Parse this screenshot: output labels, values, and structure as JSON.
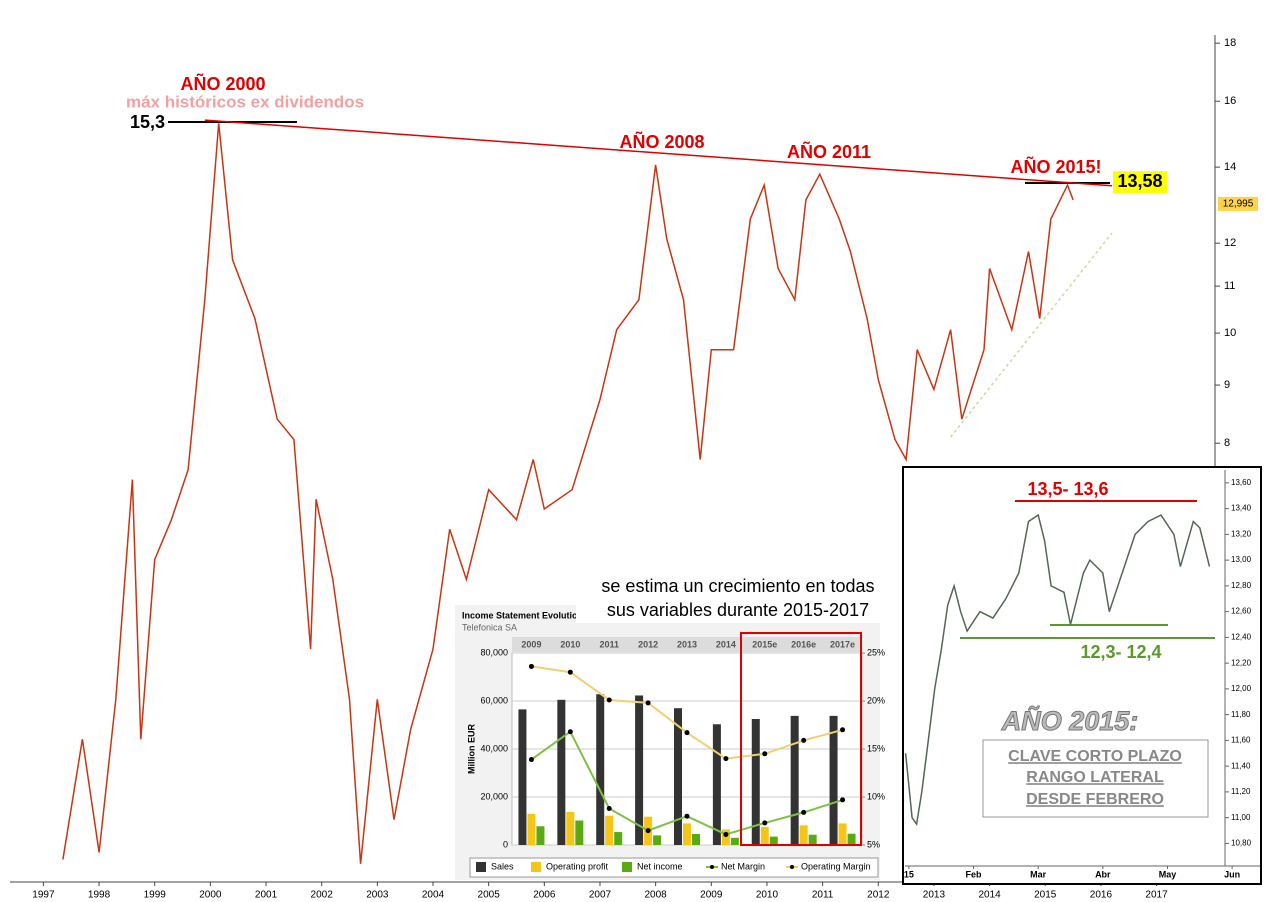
{
  "chart_data": [
    {
      "type": "line",
      "log": true,
      "xlim": [
        1996.4,
        2018.05
      ],
      "xticks": [
        1997,
        1998,
        1999,
        2000,
        2001,
        2002,
        2003,
        2004,
        2005,
        2006,
        2007,
        2008,
        2009,
        2010,
        2011,
        2012,
        2013,
        2014,
        2015,
        2016,
        2017
      ],
      "ylim": [
        3.3,
        18.3
      ],
      "yticks": [
        8,
        9,
        10,
        11,
        12,
        14,
        16,
        18
      ],
      "series": [
        {
          "color": "#cc3311",
          "x": [
            1997.35,
            1997.7,
            1998.0,
            1998.3,
            1998.6,
            1998.75,
            1999.0,
            1999.3,
            1999.6,
            1999.9,
            2000.15,
            2000.4,
            2000.8,
            2001.2,
            2001.5,
            2001.8,
            2001.9,
            2002.2,
            2002.5,
            2002.7,
            2003.0,
            2003.3,
            2003.6,
            2004.0,
            2004.3,
            2004.6,
            2005.0,
            2005.5,
            2005.8,
            2006.0,
            2006.5,
            2007.0,
            2007.3,
            2007.7,
            2008.0,
            2008.2,
            2008.5,
            2008.8,
            2009.0,
            2009.4,
            2009.7,
            2009.95,
            2010.2,
            2010.5,
            2010.7,
            2010.95,
            2011.3,
            2011.5,
            2011.8,
            2012.0,
            2012.3,
            2012.5,
            2012.7,
            2013.0,
            2013.3,
            2013.5,
            2013.9,
            2014.0,
            2014.4,
            2014.7,
            2014.9,
            2015.1,
            2015.4,
            2015.5
          ],
          "values": [
            3.44,
            4.39,
            3.49,
            4.76,
            7.43,
            4.39,
            6.32,
            6.85,
            7.58,
            10.7,
            15.3,
            11.6,
            10.3,
            8.4,
            8.06,
            5.27,
            7.14,
            6.07,
            4.76,
            3.41,
            4.76,
            3.73,
            4.48,
            5.27,
            6.72,
            6.07,
            7.28,
            6.85,
            7.74,
            7.0,
            7.28,
            8.74,
            10.07,
            10.7,
            14.06,
            12.1,
            10.7,
            7.74,
            9.67,
            9.67,
            12.6,
            13.5,
            11.4,
            10.7,
            13.1,
            13.8,
            12.6,
            11.8,
            10.3,
            9.1,
            8.06,
            7.74,
            9.67,
            8.92,
            10.07,
            8.4,
            9.67,
            11.4,
            10.07,
            11.8,
            10.3,
            12.6,
            13.5,
            13.1
          ]
        },
        {
          "color": "#e00000",
          "x": [
            1999.9,
            2016.2
          ],
          "values": [
            15.4,
            13.48
          ]
        },
        {
          "color": "#c8dca0",
          "dash": true,
          "x": [
            2013.3,
            2016.2
          ],
          "values": [
            8.1,
            12.25
          ]
        }
      ],
      "annotations": [
        "AÑO 2000",
        "máx históricos ex dividendos",
        "AÑO 2008",
        "AÑO 2011",
        "AÑO 2015!"
      ],
      "value_annotations": [
        {
          "value": 15.3,
          "label": "15,3"
        },
        {
          "value": 13.58,
          "label": "13,58"
        },
        {
          "value": 12.995,
          "label": "12,995"
        }
      ]
    },
    {
      "type": "bar",
      "title": "Income Statement Evolution",
      "subtitle": "Telefonica SA",
      "ylabel": "Million EUR",
      "note": [
        "se estima un crecimiento en todas",
        "sus variables durante 2015-2017"
      ],
      "categories": [
        "2009",
        "2010",
        "2011",
        "2012",
        "2013",
        "2014",
        "2015e",
        "2016e",
        "2017e"
      ],
      "ylim": [
        0,
        80000
      ],
      "yticks": [
        0,
        {
          "value": 20000,
          "label": "20,000"
        },
        {
          "value": 40000,
          "label": "40,000"
        },
        {
          "value": 60000,
          "label": "60,000"
        },
        {
          "value": 80000,
          "label": "80,000"
        }
      ],
      "y2lim": [
        5,
        25
      ],
      "y2ticks": [
        {
          "value": 5,
          "label": "5%"
        },
        {
          "value": 10,
          "label": "10%"
        },
        {
          "value": 15,
          "label": "15%"
        },
        {
          "value": 20,
          "label": "20%"
        },
        {
          "value": 25,
          "label": "25%"
        }
      ],
      "series": [
        {
          "name": "Sales",
          "color": "#333333",
          "values": [
            56500,
            60500,
            62800,
            62300,
            57000,
            50300,
            52500,
            53800,
            53800
          ]
        },
        {
          "name": "Operating profit",
          "color": "#f5c518",
          "values": [
            13000,
            13800,
            12200,
            11800,
            9000,
            6500,
            7500,
            8200,
            9000
          ]
        },
        {
          "name": "Net income",
          "color": "#5aaa14",
          "values": [
            7800,
            10200,
            5400,
            4000,
            4600,
            3000,
            3500,
            4300,
            4700
          ]
        },
        {
          "name": "Net Margin",
          "type": "line",
          "axis": "y2",
          "color": "#7cc242",
          "values": [
            13.9,
            16.8,
            8.8,
            6.5,
            8.0,
            6.1,
            7.3,
            8.4,
            9.7
          ]
        },
        {
          "name": "Operating Margin",
          "type": "line",
          "axis": "y2",
          "color": "#f0d070",
          "values": [
            23.6,
            23.0,
            20.1,
            19.8,
            16.7,
            14.0,
            14.5,
            15.9,
            17.0
          ]
        }
      ]
    },
    {
      "type": "line",
      "xlim": [
        -0.06,
        4.89
      ],
      "xticks": [
        {
          "value": 0,
          "label": "15"
        },
        {
          "value": 1,
          "label": "Feb"
        },
        {
          "value": 2,
          "label": "Mar"
        },
        {
          "value": 3,
          "label": "Abr"
        },
        {
          "value": 4,
          "label": "May"
        },
        {
          "value": 5,
          "label": "Jun"
        }
      ],
      "ylim": [
        10.71,
        13.7
      ],
      "yticks": [
        {
          "value": 10.8,
          "label": "10,80"
        },
        {
          "value": 11.0,
          "label": "11,00"
        },
        {
          "value": 11.2,
          "label": "11,20"
        },
        {
          "value": 11.4,
          "label": "11,40"
        },
        {
          "value": 11.6,
          "label": "11,60"
        },
        {
          "value": 11.8,
          "label": "11,80"
        },
        {
          "value": 12.0,
          "label": "12,00"
        },
        {
          "value": 12.2,
          "label": "12,20"
        },
        {
          "value": 12.4,
          "label": "12,40"
        },
        {
          "value": 12.6,
          "label": "12,60"
        },
        {
          "value": 12.8,
          "label": "12,80"
        },
        {
          "value": 13.0,
          "label": "13,00"
        },
        {
          "value": 13.2,
          "label": "13,20"
        },
        {
          "value": 13.4,
          "label": "13,40"
        },
        {
          "value": 13.6,
          "label": "13,60"
        }
      ],
      "series": [
        {
          "color": "#556655",
          "x": [
            -0.05,
            0.05,
            0.12,
            0.2,
            0.3,
            0.4,
            0.5,
            0.6,
            0.7,
            0.8,
            0.9,
            1.1,
            1.3,
            1.5,
            1.7,
            1.85,
            2.0,
            2.1,
            2.2,
            2.4,
            2.5,
            2.7,
            2.8,
            3.0,
            3.1,
            3.3,
            3.5,
            3.7,
            3.9,
            4.1,
            4.2,
            4.4,
            4.5,
            4.65
          ],
          "values": [
            11.5,
            11.0,
            10.95,
            11.2,
            11.6,
            12.0,
            12.3,
            12.65,
            12.8,
            12.6,
            12.45,
            12.6,
            12.55,
            12.7,
            12.9,
            13.3,
            13.35,
            13.15,
            12.8,
            12.75,
            12.5,
            12.9,
            13.0,
            12.9,
            12.6,
            12.9,
            13.2,
            13.3,
            13.35,
            13.2,
            12.95,
            13.3,
            13.25,
            12.95
          ]
        }
      ],
      "annotations": [
        "13,5- 13,6",
        "12,3- 12,4",
        "AÑO 2015:",
        "CLAVE CORTO PLAZO",
        "RANGO LATERAL",
        "DESDE FEBRERO"
      ]
    }
  ]
}
